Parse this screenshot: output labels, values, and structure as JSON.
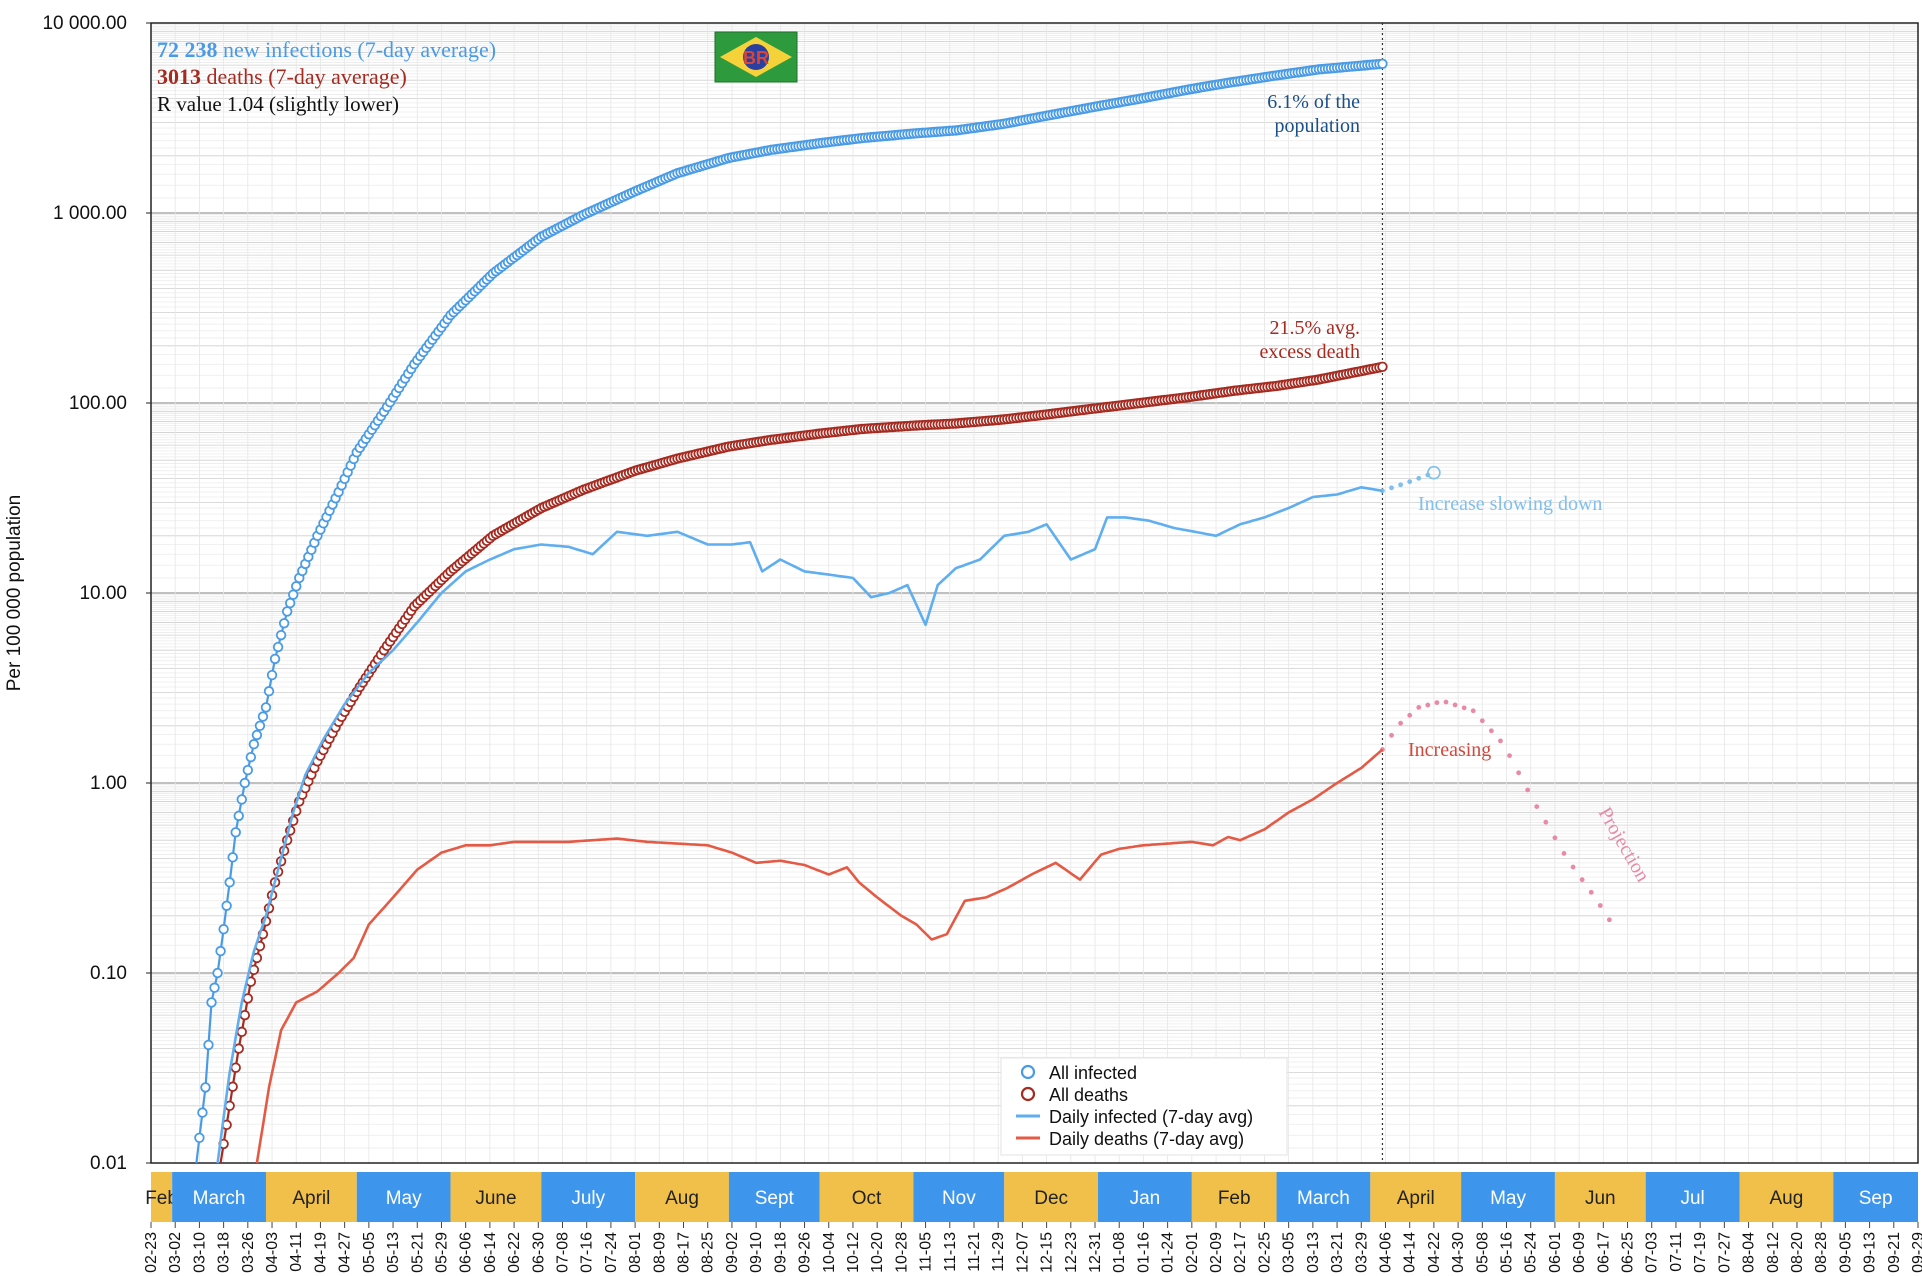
{
  "chart_data": {
    "type": "line",
    "y_scale": "log",
    "ylim": [
      0.01,
      10000
    ],
    "ylabel": "Per 100 000 population",
    "yticks": [
      "0.01",
      "0.10",
      "1.00",
      "10.00",
      "100.00",
      "1 000.00",
      "10 000.00"
    ],
    "ytick_values": [
      0.01,
      0.1,
      1,
      10,
      100,
      1000,
      10000
    ],
    "x_start": "2020-02-23",
    "x_end": "2021-09-29",
    "x_tick_labels": [
      "02-23",
      "03-02",
      "03-10",
      "03-18",
      "03-26",
      "04-03",
      "04-11",
      "04-19",
      "04-27",
      "05-05",
      "05-13",
      "05-21",
      "05-29",
      "06-06",
      "06-14",
      "06-22",
      "06-30",
      "07-08",
      "07-16",
      "07-24",
      "08-01",
      "08-09",
      "08-17",
      "08-25",
      "09-02",
      "09-10",
      "09-18",
      "09-26",
      "10-04",
      "10-12",
      "10-20",
      "10-28",
      "11-05",
      "11-13",
      "11-21",
      "11-29",
      "12-07",
      "12-15",
      "12-23",
      "12-31",
      "01-08",
      "01-16",
      "01-24",
      "02-01",
      "02-09",
      "02-17",
      "02-25",
      "03-05",
      "03-13",
      "03-21",
      "03-29",
      "04-06",
      "04-14",
      "04-22",
      "04-30",
      "05-08",
      "05-16",
      "05-24",
      "06-01",
      "06-09",
      "06-17",
      "06-25",
      "07-03",
      "07-11",
      "07-19",
      "07-27",
      "08-04",
      "08-12",
      "08-20",
      "08-28",
      "09-05",
      "09-13",
      "09-21",
      "09-29"
    ],
    "month_bands": [
      {
        "label": "Feb",
        "start": "2020-02-23",
        "end": "2020-03-01",
        "color": "#F1C04A"
      },
      {
        "label": "March",
        "start": "2020-03-01",
        "end": "2020-04-01",
        "color": "#3D95EC"
      },
      {
        "label": "April",
        "start": "2020-04-01",
        "end": "2020-05-01",
        "color": "#F1C04A"
      },
      {
        "label": "May",
        "start": "2020-05-01",
        "end": "2020-06-01",
        "color": "#3D95EC"
      },
      {
        "label": "June",
        "start": "2020-06-01",
        "end": "2020-07-01",
        "color": "#F1C04A"
      },
      {
        "label": "July",
        "start": "2020-07-01",
        "end": "2020-08-01",
        "color": "#3D95EC"
      },
      {
        "label": "Aug",
        "start": "2020-08-01",
        "end": "2020-09-01",
        "color": "#F1C04A"
      },
      {
        "label": "Sept",
        "start": "2020-09-01",
        "end": "2020-10-01",
        "color": "#3D95EC"
      },
      {
        "label": "Oct",
        "start": "2020-10-01",
        "end": "2020-11-01",
        "color": "#F1C04A"
      },
      {
        "label": "Nov",
        "start": "2020-11-01",
        "end": "2020-12-01",
        "color": "#3D95EC"
      },
      {
        "label": "Dec",
        "start": "2020-12-01",
        "end": "2021-01-01",
        "color": "#F1C04A"
      },
      {
        "label": "Jan",
        "start": "2021-01-01",
        "end": "2021-02-01",
        "color": "#3D95EC"
      },
      {
        "label": "Feb",
        "start": "2021-02-01",
        "end": "2021-03-01",
        "color": "#F1C04A"
      },
      {
        "label": "March",
        "start": "2021-03-01",
        "end": "2021-04-01",
        "color": "#3D95EC"
      },
      {
        "label": "April",
        "start": "2021-04-01",
        "end": "2021-05-01",
        "color": "#F1C04A"
      },
      {
        "label": "May",
        "start": "2021-05-01",
        "end": "2021-06-01",
        "color": "#3D95EC"
      },
      {
        "label": "Jun",
        "start": "2021-06-01",
        "end": "2021-07-01",
        "color": "#F1C04A"
      },
      {
        "label": "Jul",
        "start": "2021-07-01",
        "end": "2021-08-01",
        "color": "#3D95EC"
      },
      {
        "label": "Aug",
        "start": "2021-08-01",
        "end": "2021-09-01",
        "color": "#F1C04A"
      },
      {
        "label": "Sep",
        "start": "2021-09-01",
        "end": "2021-09-29",
        "color": "#3D95EC"
      }
    ],
    "current_date": "2021-04-05",
    "series": [
      {
        "name": "All infected",
        "style": "line-circles",
        "color": "#4A9BE6",
        "points": [
          [
            "2020-03-09",
            0.01
          ],
          [
            "2020-03-12",
            0.025
          ],
          [
            "2020-03-14",
            0.07
          ],
          [
            "2020-03-16",
            0.1
          ],
          [
            "2020-03-18",
            0.17
          ],
          [
            "2020-03-20",
            0.3
          ],
          [
            "2020-03-22",
            0.55
          ],
          [
            "2020-03-25",
            1.0
          ],
          [
            "2020-03-28",
            1.6
          ],
          [
            "2020-04-01",
            2.5
          ],
          [
            "2020-04-04",
            4.5
          ],
          [
            "2020-04-08",
            8.0
          ],
          [
            "2020-04-12",
            12
          ],
          [
            "2020-04-18",
            20
          ],
          [
            "2020-04-25",
            34
          ],
          [
            "2020-05-01",
            55
          ],
          [
            "2020-05-10",
            90
          ],
          [
            "2020-05-20",
            160
          ],
          [
            "2020-06-01",
            290
          ],
          [
            "2020-06-15",
            480
          ],
          [
            "2020-07-01",
            750
          ],
          [
            "2020-07-15",
            980
          ],
          [
            "2020-08-01",
            1300
          ],
          [
            "2020-08-15",
            1620
          ],
          [
            "2020-09-01",
            1950
          ],
          [
            "2020-09-15",
            2150
          ],
          [
            "2020-10-01",
            2330
          ],
          [
            "2020-10-15",
            2480
          ],
          [
            "2020-11-01",
            2620
          ],
          [
            "2020-11-15",
            2720
          ],
          [
            "2020-12-01",
            2950
          ],
          [
            "2020-12-15",
            3250
          ],
          [
            "2021-01-01",
            3650
          ],
          [
            "2021-01-15",
            4000
          ],
          [
            "2021-02-01",
            4500
          ],
          [
            "2021-02-15",
            4900
          ],
          [
            "2021-03-01",
            5300
          ],
          [
            "2021-03-15",
            5700
          ],
          [
            "2021-04-05",
            6100
          ]
        ]
      },
      {
        "name": "All deaths",
        "style": "line-circles",
        "color": "#A52A20",
        "points": [
          [
            "2020-03-17",
            0.01
          ],
          [
            "2020-03-20",
            0.02
          ],
          [
            "2020-03-23",
            0.04
          ],
          [
            "2020-03-27",
            0.09
          ],
          [
            "2020-03-31",
            0.16
          ],
          [
            "2020-04-04",
            0.3
          ],
          [
            "2020-04-08",
            0.5
          ],
          [
            "2020-04-12",
            0.8
          ],
          [
            "2020-04-18",
            1.3
          ],
          [
            "2020-04-25",
            2.1
          ],
          [
            "2020-05-02",
            3.2
          ],
          [
            "2020-05-10",
            5.0
          ],
          [
            "2020-05-20",
            8.5
          ],
          [
            "2020-06-01",
            13
          ],
          [
            "2020-06-15",
            20
          ],
          [
            "2020-07-01",
            28
          ],
          [
            "2020-07-15",
            35
          ],
          [
            "2020-08-01",
            44
          ],
          [
            "2020-08-15",
            51
          ],
          [
            "2020-09-01",
            59
          ],
          [
            "2020-09-15",
            64
          ],
          [
            "2020-10-01",
            69
          ],
          [
            "2020-10-15",
            73
          ],
          [
            "2020-11-01",
            76
          ],
          [
            "2020-11-15",
            78
          ],
          [
            "2020-12-01",
            82
          ],
          [
            "2020-12-15",
            87
          ],
          [
            "2021-01-01",
            94
          ],
          [
            "2021-01-15",
            100
          ],
          [
            "2021-02-01",
            108
          ],
          [
            "2021-02-15",
            116
          ],
          [
            "2021-03-01",
            123
          ],
          [
            "2021-03-15",
            133
          ],
          [
            "2021-04-05",
            155
          ]
        ]
      },
      {
        "name": "Daily infected (7-day avg)",
        "style": "line",
        "color": "#5EAEF0",
        "points": [
          [
            "2020-03-16",
            0.01
          ],
          [
            "2020-03-20",
            0.03
          ],
          [
            "2020-03-24",
            0.07
          ],
          [
            "2020-03-28",
            0.13
          ],
          [
            "2020-04-01",
            0.2
          ],
          [
            "2020-04-05",
            0.35
          ],
          [
            "2020-04-10",
            0.7
          ],
          [
            "2020-04-14",
            1.1
          ],
          [
            "2020-04-20",
            1.7
          ],
          [
            "2020-04-27",
            2.6
          ],
          [
            "2020-05-05",
            3.8
          ],
          [
            "2020-05-13",
            5.0
          ],
          [
            "2020-05-21",
            7.0
          ],
          [
            "2020-05-29",
            10
          ],
          [
            "2020-06-06",
            13
          ],
          [
            "2020-06-14",
            15
          ],
          [
            "2020-06-22",
            17
          ],
          [
            "2020-07-01",
            18
          ],
          [
            "2020-07-10",
            17.5
          ],
          [
            "2020-07-18",
            16
          ],
          [
            "2020-07-26",
            21
          ],
          [
            "2020-08-05",
            20
          ],
          [
            "2020-08-15",
            21
          ],
          [
            "2020-08-25",
            18
          ],
          [
            "2020-09-02",
            18
          ],
          [
            "2020-09-08",
            18.5
          ],
          [
            "2020-09-12",
            13
          ],
          [
            "2020-09-18",
            15
          ],
          [
            "2020-09-26",
            13
          ],
          [
            "2020-10-04",
            12.5
          ],
          [
            "2020-10-12",
            12
          ],
          [
            "2020-10-18",
            9.5
          ],
          [
            "2020-10-24",
            10
          ],
          [
            "2020-10-30",
            11
          ],
          [
            "2020-11-05",
            6.8
          ],
          [
            "2020-11-09",
            11
          ],
          [
            "2020-11-15",
            13.5
          ],
          [
            "2020-11-23",
            15
          ],
          [
            "2020-12-01",
            20
          ],
          [
            "2020-12-09",
            21
          ],
          [
            "2020-12-15",
            23
          ],
          [
            "2020-12-23",
            15
          ],
          [
            "2020-12-31",
            17
          ],
          [
            "2021-01-04",
            25
          ],
          [
            "2021-01-10",
            25
          ],
          [
            "2021-01-18",
            24
          ],
          [
            "2021-01-26",
            22
          ],
          [
            "2021-02-02",
            21
          ],
          [
            "2021-02-09",
            20
          ],
          [
            "2021-02-17",
            23
          ],
          [
            "2021-02-25",
            25
          ],
          [
            "2021-03-05",
            28
          ],
          [
            "2021-03-13",
            32
          ],
          [
            "2021-03-21",
            33
          ],
          [
            "2021-03-29",
            36
          ],
          [
            "2021-04-05",
            34.5
          ]
        ]
      },
      {
        "name": "Daily deaths (7-day avg)",
        "style": "line",
        "color": "#E55A45",
        "points": [
          [
            "2020-03-29",
            0.01
          ],
          [
            "2020-04-02",
            0.025
          ],
          [
            "2020-04-06",
            0.05
          ],
          [
            "2020-04-11",
            0.07
          ],
          [
            "2020-04-18",
            0.08
          ],
          [
            "2020-04-25",
            0.1
          ],
          [
            "2020-04-30",
            0.12
          ],
          [
            "2020-05-05",
            0.18
          ],
          [
            "2020-05-13",
            0.25
          ],
          [
            "2020-05-21",
            0.35
          ],
          [
            "2020-05-29",
            0.43
          ],
          [
            "2020-06-06",
            0.47
          ],
          [
            "2020-06-14",
            0.47
          ],
          [
            "2020-06-22",
            0.49
          ],
          [
            "2020-07-01",
            0.49
          ],
          [
            "2020-07-10",
            0.49
          ],
          [
            "2020-07-18",
            0.5
          ],
          [
            "2020-07-26",
            0.51
          ],
          [
            "2020-08-05",
            0.49
          ],
          [
            "2020-08-15",
            0.48
          ],
          [
            "2020-08-25",
            0.47
          ],
          [
            "2020-09-02",
            0.43
          ],
          [
            "2020-09-10",
            0.38
          ],
          [
            "2020-09-18",
            0.39
          ],
          [
            "2020-09-26",
            0.37
          ],
          [
            "2020-10-04",
            0.33
          ],
          [
            "2020-10-10",
            0.36
          ],
          [
            "2020-10-14",
            0.3
          ],
          [
            "2020-10-20",
            0.25
          ],
          [
            "2020-10-28",
            0.2
          ],
          [
            "2020-11-02",
            0.18
          ],
          [
            "2020-11-07",
            0.15
          ],
          [
            "2020-11-12",
            0.16
          ],
          [
            "2020-11-18",
            0.24
          ],
          [
            "2020-11-25",
            0.25
          ],
          [
            "2020-12-02",
            0.28
          ],
          [
            "2020-12-10",
            0.33
          ],
          [
            "2020-12-18",
            0.38
          ],
          [
            "2020-12-26",
            0.31
          ],
          [
            "2021-01-02",
            0.42
          ],
          [
            "2021-01-08",
            0.45
          ],
          [
            "2021-01-16",
            0.47
          ],
          [
            "2021-01-24",
            0.48
          ],
          [
            "2021-02-01",
            0.49
          ],
          [
            "2021-02-08",
            0.47
          ],
          [
            "2021-02-13",
            0.52
          ],
          [
            "2021-02-17",
            0.5
          ],
          [
            "2021-02-25",
            0.57
          ],
          [
            "2021-03-05",
            0.7
          ],
          [
            "2021-03-13",
            0.82
          ],
          [
            "2021-03-21",
            1.0
          ],
          [
            "2021-03-29",
            1.2
          ],
          [
            "2021-04-05",
            1.5
          ]
        ]
      }
    ],
    "projections": [
      {
        "name": "infected-projection",
        "color": "#7FC0EE",
        "points": [
          [
            "2021-04-05",
            34.5
          ],
          [
            "2021-04-13",
            38
          ],
          [
            "2021-04-22",
            43
          ]
        ]
      },
      {
        "name": "deaths-projection",
        "color": "#E88AA6",
        "points": [
          [
            "2021-04-05",
            1.5
          ],
          [
            "2021-04-10",
            2.0
          ],
          [
            "2021-04-17",
            2.5
          ],
          [
            "2021-04-25",
            2.7
          ],
          [
            "2021-05-05",
            2.4
          ],
          [
            "2021-05-15",
            1.6
          ],
          [
            "2021-05-25",
            0.8
          ],
          [
            "2021-06-05",
            0.4
          ],
          [
            "2021-06-15",
            0.24
          ],
          [
            "2021-06-20",
            0.18
          ]
        ]
      }
    ],
    "legend": {
      "placement": "bottom-center",
      "entries": [
        {
          "label": "All infected",
          "color": "#4A9BE6",
          "marker": "circle"
        },
        {
          "label": "All deaths",
          "color": "#A52A20",
          "marker": "circle"
        },
        {
          "label": "Daily infected (7-day avg)",
          "color": "#5EAEF0",
          "marker": "line"
        },
        {
          "label": "Daily deaths (7-day avg)",
          "color": "#E55A45",
          "marker": "line"
        }
      ]
    }
  },
  "header": {
    "infections_value": "72 238",
    "infections_text": " new infections (7-day average)",
    "deaths_value": "3013",
    "deaths_text": " deaths (7-day average)",
    "r_text": "R value 1.04 (slightly lower)",
    "flag_text": "BR"
  },
  "annotations": {
    "population_line1": "6.1% of the",
    "population_line2": "population",
    "excess_line1": "21.5% avg.",
    "excess_line2": "excess death",
    "increase_slowing": "Increase slowing down",
    "increasing": "Increasing",
    "projection": "Projection"
  },
  "colors": {
    "infected": "#4A9BE6",
    "deaths": "#A52A20",
    "daily_infected": "#5EAEF0",
    "daily_deaths": "#E55A45",
    "population_note": "#1B4F8A",
    "grid": "#D8D8D8"
  }
}
